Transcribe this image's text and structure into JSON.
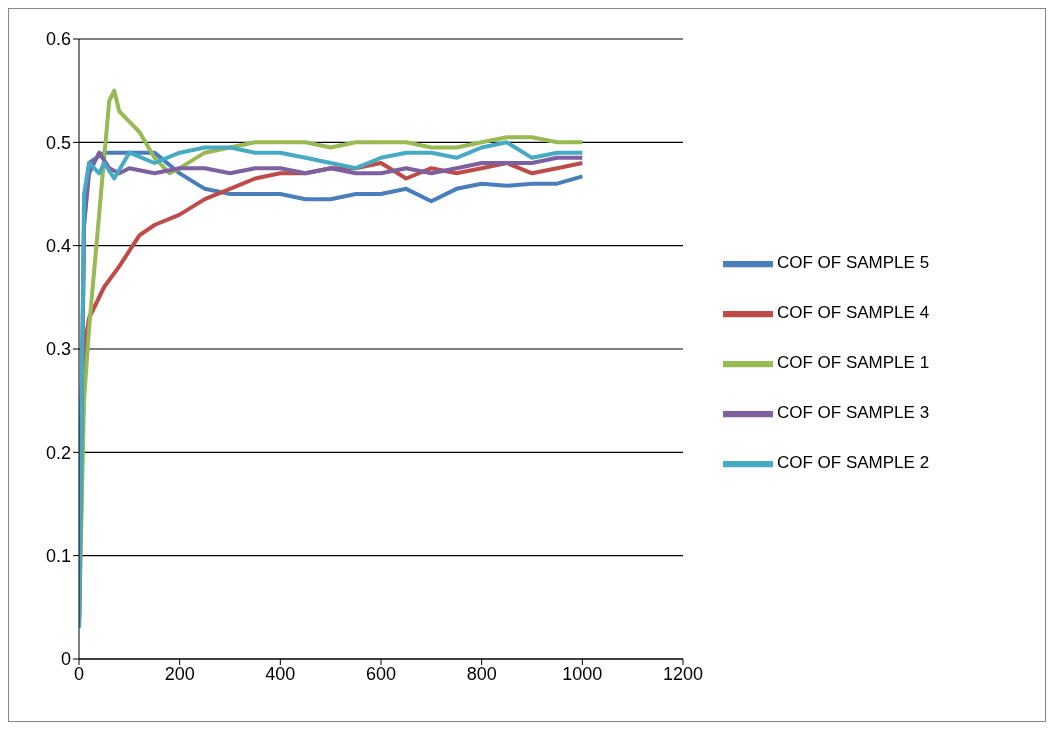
{
  "chart_data": {
    "type": "line",
    "xlim": [
      0,
      1200
    ],
    "xticks": [
      0,
      200,
      400,
      600,
      800,
      1000,
      1200
    ],
    "ylim": [
      0,
      0.6
    ],
    "yticks": [
      0,
      0.1,
      0.2,
      0.3,
      0.4,
      0.5,
      0.6
    ],
    "grid": "y",
    "legend": "right",
    "marker": "none",
    "line_style": "solid",
    "series": [
      {
        "name": "COF OF SAMPLE 5",
        "color": "#4a7ebb",
        "x": [
          0,
          10,
          20,
          50,
          100,
          150,
          200,
          250,
          300,
          350,
          400,
          450,
          500,
          550,
          600,
          650,
          700,
          750,
          800,
          850,
          900,
          950,
          1000
        ],
        "values": [
          0.03,
          0.42,
          0.48,
          0.49,
          0.49,
          0.49,
          0.47,
          0.455,
          0.45,
          0.45,
          0.45,
          0.445,
          0.445,
          0.45,
          0.45,
          0.455,
          0.443,
          0.455,
          0.46,
          0.458,
          0.46,
          0.46,
          0.467
        ]
      },
      {
        "name": "COF OF SAMPLE 4",
        "color": "#be4b48",
        "x": [
          0,
          10,
          20,
          50,
          80,
          100,
          120,
          150,
          200,
          250,
          300,
          350,
          400,
          450,
          500,
          550,
          600,
          650,
          700,
          750,
          800,
          850,
          900,
          950,
          1000
        ],
        "values": [
          0.03,
          0.3,
          0.33,
          0.36,
          0.38,
          0.395,
          0.41,
          0.42,
          0.43,
          0.445,
          0.455,
          0.465,
          0.47,
          0.47,
          0.475,
          0.475,
          0.48,
          0.465,
          0.475,
          0.47,
          0.475,
          0.48,
          0.47,
          0.475,
          0.48
        ]
      },
      {
        "name": "COF OF SAMPLE 1",
        "color": "#98b954",
        "x": [
          0,
          10,
          20,
          40,
          60,
          70,
          80,
          100,
          120,
          150,
          180,
          200,
          250,
          300,
          350,
          400,
          450,
          500,
          550,
          600,
          650,
          700,
          750,
          800,
          850,
          900,
          950,
          1000
        ],
        "values": [
          0.03,
          0.25,
          0.32,
          0.43,
          0.54,
          0.55,
          0.53,
          0.52,
          0.51,
          0.485,
          0.47,
          0.475,
          0.49,
          0.495,
          0.5,
          0.5,
          0.5,
          0.495,
          0.5,
          0.5,
          0.5,
          0.495,
          0.495,
          0.5,
          0.505,
          0.505,
          0.5,
          0.5
        ]
      },
      {
        "name": "COF OF SAMPLE 3",
        "color": "#7d60a0",
        "x": [
          0,
          10,
          20,
          40,
          60,
          80,
          100,
          150,
          200,
          250,
          300,
          350,
          400,
          450,
          500,
          550,
          600,
          650,
          700,
          750,
          800,
          850,
          900,
          950,
          1000
        ],
        "values": [
          0.03,
          0.42,
          0.47,
          0.49,
          0.475,
          0.47,
          0.475,
          0.47,
          0.475,
          0.475,
          0.47,
          0.475,
          0.475,
          0.47,
          0.475,
          0.47,
          0.47,
          0.475,
          0.47,
          0.475,
          0.48,
          0.48,
          0.48,
          0.485,
          0.485
        ]
      },
      {
        "name": "COF OF SAMPLE 2",
        "color": "#46aac5",
        "x": [
          0,
          10,
          20,
          40,
          50,
          70,
          100,
          150,
          200,
          250,
          300,
          350,
          400,
          450,
          500,
          550,
          600,
          650,
          700,
          750,
          800,
          850,
          900,
          950,
          1000
        ],
        "values": [
          0.03,
          0.45,
          0.48,
          0.47,
          0.48,
          0.465,
          0.49,
          0.48,
          0.49,
          0.495,
          0.495,
          0.49,
          0.49,
          0.485,
          0.48,
          0.475,
          0.485,
          0.49,
          0.49,
          0.485,
          0.495,
          0.5,
          0.485,
          0.49,
          0.49
        ]
      }
    ]
  }
}
